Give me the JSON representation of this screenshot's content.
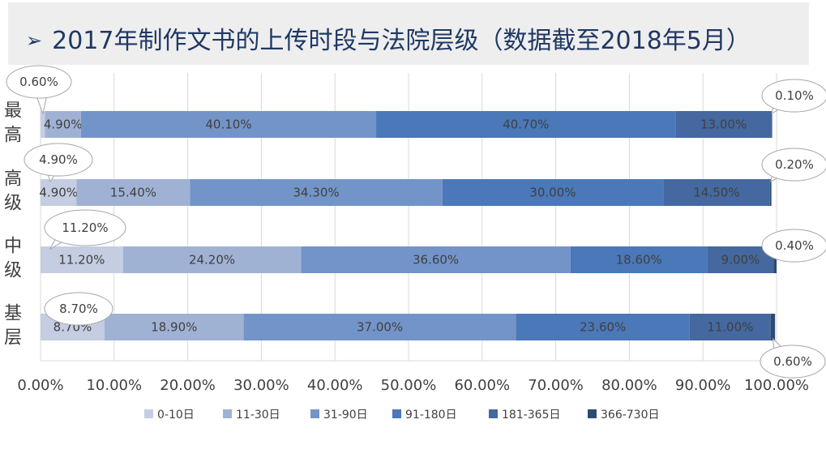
{
  "title": "2017年制作文书的上传时段与法院层级（数据截至2018年5月）",
  "title_bullet": "➢",
  "chart_data": {
    "type": "bar",
    "orientation": "horizontal",
    "stacked": true,
    "title": "2017年制作文书的上传时段与法院层级（数据截至2018年5月）",
    "categories": [
      "最高",
      "高级",
      "中级",
      "基层"
    ],
    "series": [
      {
        "name": "0-10日",
        "color": "#c5cde2",
        "values": [
          0.6,
          4.9,
          11.2,
          8.7
        ]
      },
      {
        "name": "11-30日",
        "color": "#a0b2d4",
        "values": [
          4.9,
          15.4,
          24.2,
          18.9
        ]
      },
      {
        "name": "31-90日",
        "color": "#7394c8",
        "values": [
          40.1,
          34.3,
          36.6,
          37.0
        ]
      },
      {
        "name": "91-180日",
        "color": "#4a78b8",
        "values": [
          40.7,
          30.0,
          18.6,
          23.6
        ]
      },
      {
        "name": "181-365日",
        "color": "#44689f",
        "values": [
          13.0,
          14.5,
          9.0,
          11.0
        ]
      },
      {
        "name": "366-730日",
        "color": "#2e4a73",
        "values": [
          0.1,
          0.2,
          0.4,
          0.6
        ]
      }
    ],
    "xlim": [
      0,
      100
    ],
    "xticks": [
      "0.00%",
      "10.00%",
      "20.00%",
      "30.00%",
      "40.00%",
      "50.00%",
      "60.00%",
      "70.00%",
      "80.00%",
      "90.00%",
      "100.00%"
    ],
    "value_labels": [
      [
        "0.60%",
        "4.90%",
        "40.10%",
        "40.70%",
        "13.00%",
        "0.10%"
      ],
      [
        "4.90%",
        "15.40%",
        "34.30%",
        "30.00%",
        "14.50%",
        "0.20%"
      ],
      [
        "11.20%",
        "24.20%",
        "36.60%",
        "18.60%",
        "9.00%",
        "0.40%"
      ],
      [
        "8.70%",
        "18.90%",
        "37.00%",
        "23.60%",
        "11.00%",
        "0.60%"
      ]
    ],
    "grid": true,
    "legend_position": "bottom"
  }
}
